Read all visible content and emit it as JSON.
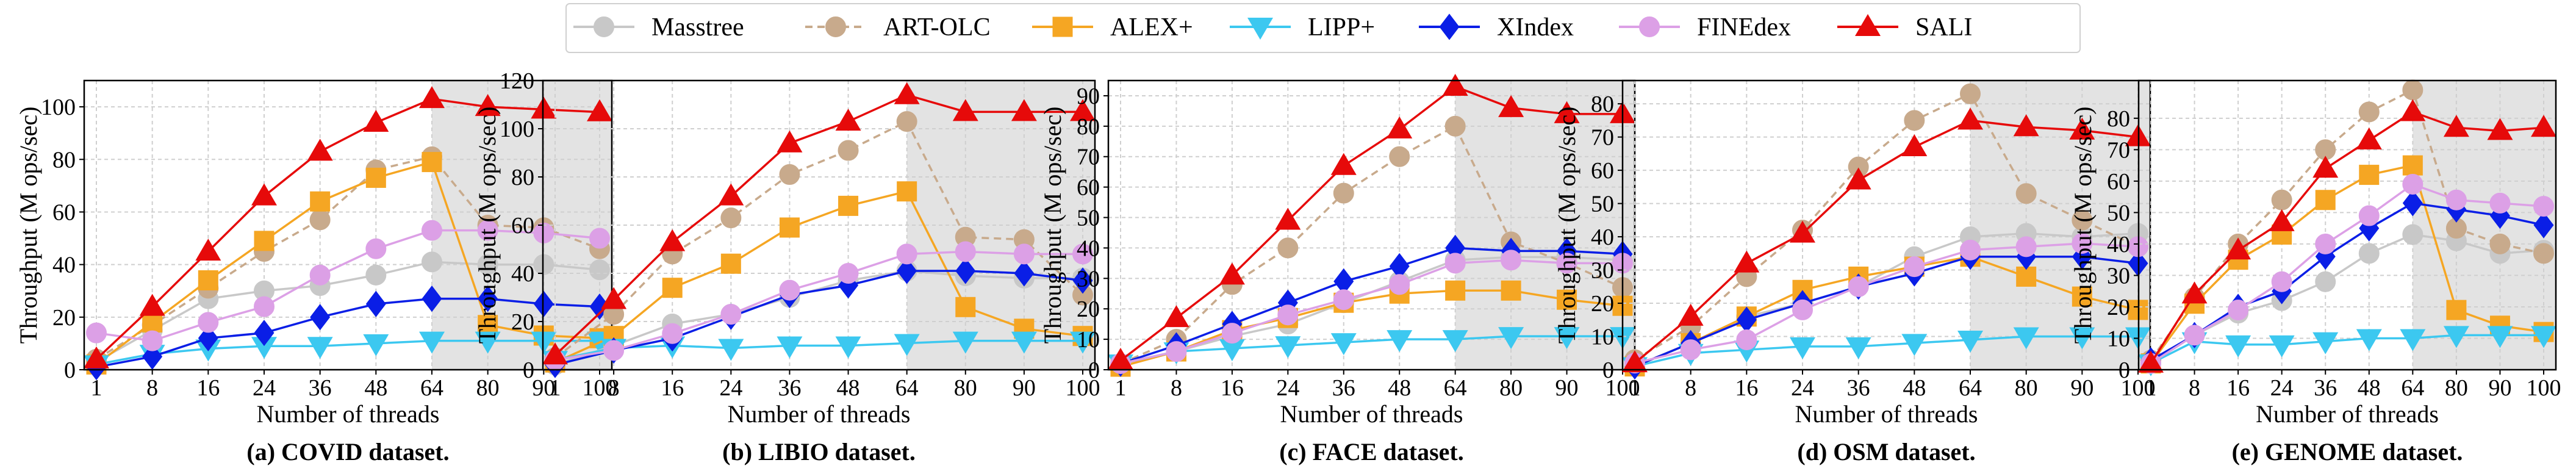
{
  "legend": [
    {
      "name": "Masstree",
      "color": "#c8c8c8",
      "marker": "circle",
      "dash": "solid"
    },
    {
      "name": "ART-OLC",
      "color": "#c8aa8c",
      "marker": "circle",
      "dash": "dashed"
    },
    {
      "name": "ALEX+",
      "color": "#f5a623",
      "marker": "square",
      "dash": "solid"
    },
    {
      "name": "LIPP+",
      "color": "#3cc8f0",
      "marker": "triangle-down",
      "dash": "solid"
    },
    {
      "name": "XIndex",
      "color": "#0a1ee6",
      "marker": "diamond",
      "dash": "solid"
    },
    {
      "name": "FINEdex",
      "color": "#dca0e6",
      "marker": "circle",
      "dash": "solid"
    },
    {
      "name": "SALI",
      "color": "#e60a0a",
      "marker": "triangle-up",
      "dash": "solid"
    }
  ],
  "chart_data": [
    {
      "type": "line",
      "title": "(a) COVID dataset.",
      "xlabel": "Number of threads",
      "ylabel": "Throughput (M ops/sec)",
      "x": [
        1,
        8,
        16,
        24,
        36,
        48,
        64,
        80,
        90,
        100
      ],
      "xticks": [
        "1",
        "8",
        "16",
        "24",
        "36",
        "48",
        "64",
        "80",
        "90",
        "100"
      ],
      "ylim": [
        0,
        110
      ],
      "yticks": [
        0,
        20,
        40,
        60,
        80,
        100
      ],
      "shade_from": 64,
      "series": [
        {
          "name": "Masstree",
          "values": [
            3,
            15,
            27,
            30,
            32,
            36,
            41,
            40,
            40,
            38
          ]
        },
        {
          "name": "ART-OLC",
          "values": [
            4,
            17,
            31,
            45,
            57,
            76,
            81,
            55,
            54,
            46
          ]
        },
        {
          "name": "ALEX+",
          "values": [
            2,
            18,
            34,
            49,
            64,
            73,
            79,
            17,
            13,
            12
          ]
        },
        {
          "name": "LIPP+",
          "values": [
            2,
            6,
            8,
            9,
            9,
            10,
            11,
            11,
            11,
            11
          ]
        },
        {
          "name": "XIndex",
          "values": [
            1,
            5,
            12,
            14,
            20,
            25,
            27,
            27,
            25,
            24
          ]
        },
        {
          "name": "FINEdex",
          "values": [
            14,
            11,
            18,
            24,
            36,
            46,
            53,
            53,
            52,
            50
          ]
        },
        {
          "name": "SALI",
          "values": [
            4,
            24,
            45,
            66,
            83,
            94,
            103,
            100,
            99,
            98
          ]
        }
      ]
    },
    {
      "type": "line",
      "title": "(b) LIBIO dataset.",
      "xlabel": "Number of threads",
      "ylabel": "Throughput (M ops/sec)",
      "x": [
        1,
        8,
        16,
        24,
        36,
        48,
        64,
        80,
        90,
        100
      ],
      "xticks": [
        "1",
        "8",
        "16",
        "24",
        "36",
        "48",
        "64",
        "80",
        "90",
        "100"
      ],
      "ylim": [
        0,
        120
      ],
      "yticks": [
        0,
        20,
        40,
        60,
        80,
        100,
        120
      ],
      "shade_from": 64,
      "series": [
        {
          "name": "Masstree",
          "values": [
            2,
            10,
            19,
            23,
            30,
            37,
            41,
            39,
            38,
            38
          ]
        },
        {
          "name": "ART-OLC",
          "values": [
            5,
            23,
            48,
            63,
            81,
            91,
            103,
            55,
            54,
            31
          ]
        },
        {
          "name": "ALEX+",
          "values": [
            3,
            14,
            34,
            44,
            59,
            68,
            74,
            26,
            17,
            14
          ]
        },
        {
          "name": "LIPP+",
          "values": [
            4,
            9,
            10,
            9,
            10,
            10,
            11,
            12,
            12,
            12
          ]
        },
        {
          "name": "XIndex",
          "values": [
            2,
            8,
            13,
            22,
            31,
            35,
            41,
            41,
            40,
            37
          ]
        },
        {
          "name": "FINEdex",
          "values": [
            4,
            8,
            15,
            23,
            33,
            40,
            48,
            49,
            48,
            48
          ]
        },
        {
          "name": "SALI",
          "values": [
            6,
            29,
            53,
            72,
            94,
            103,
            114,
            107,
            107,
            107
          ]
        }
      ]
    },
    {
      "type": "line",
      "title": "(c) FACE dataset.",
      "xlabel": "Number of threads",
      "ylabel": "Throughput (M ops/sec)",
      "x": [
        1,
        8,
        16,
        24,
        36,
        48,
        64,
        80,
        90,
        100
      ],
      "xticks": [
        "1",
        "8",
        "16",
        "24",
        "36",
        "48",
        "64",
        "80",
        "90",
        "100"
      ],
      "ylim": [
        0,
        95
      ],
      "yticks": [
        0,
        10,
        20,
        30,
        40,
        50,
        60,
        70,
        80,
        90
      ],
      "shade_from": 64,
      "series": [
        {
          "name": "Masstree",
          "values": [
            1,
            6,
            11,
            15,
            22,
            29,
            36,
            37,
            37,
            36
          ]
        },
        {
          "name": "ART-OLC",
          "values": [
            2,
            10,
            28,
            40,
            58,
            70,
            80,
            42,
            35,
            27
          ]
        },
        {
          "name": "ALEX+",
          "values": [
            1,
            6,
            13,
            17,
            22,
            25,
            26,
            26,
            23,
            21
          ]
        },
        {
          "name": "LIPP+",
          "values": [
            2,
            6,
            7,
            8,
            9,
            10,
            10,
            11,
            11,
            11
          ]
        },
        {
          "name": "XIndex",
          "values": [
            2,
            8,
            15,
            22,
            29,
            34,
            40,
            39,
            39,
            38
          ]
        },
        {
          "name": "FINEdex",
          "values": [
            2,
            6,
            12,
            18,
            23,
            28,
            35,
            36,
            35,
            35
          ]
        },
        {
          "name": "SALI",
          "values": [
            3,
            17,
            31,
            49,
            67,
            79,
            93,
            86,
            84,
            84
          ]
        }
      ]
    },
    {
      "type": "line",
      "title": "(d) OSM dataset.",
      "xlabel": "Number of threads",
      "ylabel": "Throughput (M ops/sec)",
      "x": [
        1,
        8,
        16,
        24,
        36,
        48,
        64,
        80,
        90,
        100
      ],
      "xticks": [
        "1",
        "8",
        "16",
        "24",
        "36",
        "48",
        "64",
        "80",
        "90",
        "100"
      ],
      "ylim": [
        0,
        87
      ],
      "yticks": [
        0,
        10,
        20,
        30,
        40,
        50,
        60,
        70,
        80
      ],
      "shade_from": 64,
      "series": [
        {
          "name": "Masstree",
          "values": [
            1,
            8,
            16,
            20,
            25,
            34,
            40,
            41,
            40,
            41
          ]
        },
        {
          "name": "ART-OLC",
          "values": [
            3,
            13,
            28,
            42,
            61,
            75,
            83,
            53,
            45,
            37
          ]
        },
        {
          "name": "ALEX+",
          "values": [
            1,
            8,
            16,
            24,
            28,
            31,
            34,
            28,
            22,
            18
          ]
        },
        {
          "name": "LIPP+",
          "values": [
            1,
            5,
            6,
            7,
            7,
            8,
            9,
            10,
            10,
            10
          ]
        },
        {
          "name": "XIndex",
          "values": [
            1,
            8,
            15,
            20,
            25,
            29,
            34,
            34,
            34,
            32
          ]
        },
        {
          "name": "FINEdex",
          "values": [
            2,
            6,
            9,
            18,
            25,
            31,
            36,
            37,
            38,
            37
          ]
        },
        {
          "name": "SALI",
          "values": [
            2,
            16,
            32,
            41,
            57,
            67,
            75,
            73,
            72,
            70
          ]
        }
      ]
    },
    {
      "type": "line",
      "title": "(e) GENOME dataset.",
      "xlabel": "Number of threads",
      "ylabel": "Throughput (M ops/sec)",
      "x": [
        1,
        8,
        16,
        24,
        36,
        48,
        64,
        80,
        90,
        100
      ],
      "xticks": [
        "1",
        "8",
        "16",
        "24",
        "36",
        "48",
        "64",
        "80",
        "90",
        "100"
      ],
      "ylim": [
        0,
        92
      ],
      "yticks": [
        0,
        10,
        20,
        30,
        40,
        50,
        60,
        70,
        80
      ],
      "shade_from": 64,
      "series": [
        {
          "name": "Masstree",
          "values": [
            2,
            11,
            18,
            22,
            28,
            37,
            43,
            41,
            37,
            38
          ]
        },
        {
          "name": "ART-OLC",
          "values": [
            3,
            23,
            40,
            54,
            70,
            82,
            89,
            45,
            40,
            37
          ]
        },
        {
          "name": "ALEX+",
          "values": [
            2,
            21,
            35,
            43,
            54,
            62,
            65,
            19,
            14,
            12
          ]
        },
        {
          "name": "LIPP+",
          "values": [
            2,
            9,
            8,
            8,
            9,
            10,
            10,
            11,
            11,
            11
          ]
        },
        {
          "name": "XIndex",
          "values": [
            3,
            11,
            20,
            25,
            36,
            45,
            53,
            51,
            49,
            46
          ]
        },
        {
          "name": "FINEdex",
          "values": [
            2,
            11,
            19,
            28,
            40,
            49,
            59,
            54,
            53,
            52
          ]
        },
        {
          "name": "SALI",
          "values": [
            2,
            24,
            38,
            47,
            64,
            73,
            82,
            77,
            76,
            77
          ]
        }
      ]
    }
  ]
}
